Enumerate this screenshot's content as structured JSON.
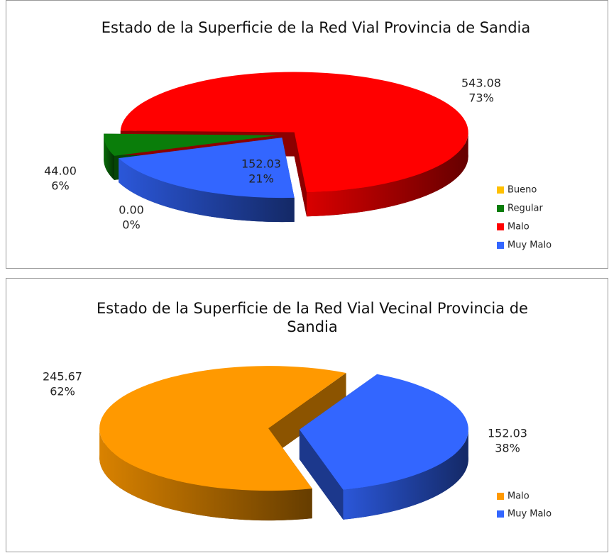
{
  "chart_data": [
    {
      "type": "pie",
      "title": "Estado de la Superficie de la Red Vial Provincia de Sandia",
      "categories": [
        "Bueno",
        "Regular",
        "Malo",
        "Muy Malo"
      ],
      "values": [
        0.0,
        44.0,
        543.08,
        152.03
      ],
      "value_labels": [
        "0.00",
        "44.00",
        "543.08",
        "152.03"
      ],
      "percent_labels": [
        "0%",
        "6%",
        "73%",
        "21%"
      ],
      "colors": [
        "#ffc000",
        "#0a7d0a",
        "#ff0000",
        "#3366ff"
      ],
      "legend": "right"
    },
    {
      "type": "pie",
      "title": "Estado de la Superficie de la Red Vial Vecinal Provincia de Sandia",
      "categories": [
        "Malo",
        "Muy Malo"
      ],
      "values": [
        245.67,
        152.03
      ],
      "value_labels": [
        "245.67",
        "152.03"
      ],
      "percent_labels": [
        "62%",
        "38%"
      ],
      "colors": [
        "#ff9900",
        "#3366ff"
      ],
      "legend": "right"
    }
  ]
}
